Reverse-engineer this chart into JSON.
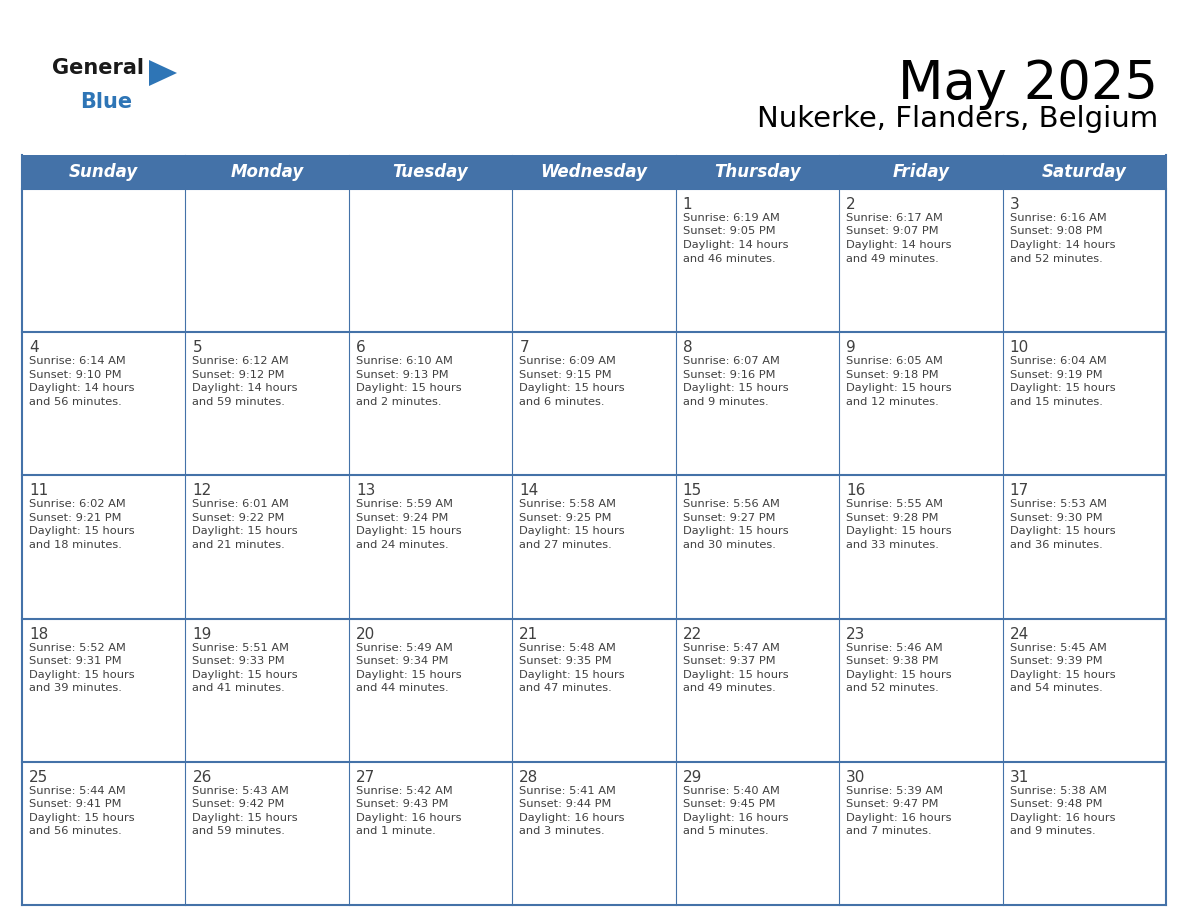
{
  "title": "May 2025",
  "subtitle": "Nukerke, Flanders, Belgium",
  "header_bg": "#4472A8",
  "header_text_color": "#FFFFFF",
  "cell_bg": "#FFFFFF",
  "border_color": "#4472A8",
  "row_border_color": "#4472A8",
  "text_color": "#404040",
  "day_number_color": "#404040",
  "days_of_week": [
    "Sunday",
    "Monday",
    "Tuesday",
    "Wednesday",
    "Thursday",
    "Friday",
    "Saturday"
  ],
  "calendar": [
    [
      {
        "day": null,
        "text": ""
      },
      {
        "day": null,
        "text": ""
      },
      {
        "day": null,
        "text": ""
      },
      {
        "day": null,
        "text": ""
      },
      {
        "day": 1,
        "sunrise": "6:19 AM",
        "sunset": "9:05 PM",
        "daylight": "14 hours",
        "daylight2": "and 46 minutes."
      },
      {
        "day": 2,
        "sunrise": "6:17 AM",
        "sunset": "9:07 PM",
        "daylight": "14 hours",
        "daylight2": "and 49 minutes."
      },
      {
        "day": 3,
        "sunrise": "6:16 AM",
        "sunset": "9:08 PM",
        "daylight": "14 hours",
        "daylight2": "and 52 minutes."
      }
    ],
    [
      {
        "day": 4,
        "sunrise": "6:14 AM",
        "sunset": "9:10 PM",
        "daylight": "14 hours",
        "daylight2": "and 56 minutes."
      },
      {
        "day": 5,
        "sunrise": "6:12 AM",
        "sunset": "9:12 PM",
        "daylight": "14 hours",
        "daylight2": "and 59 minutes."
      },
      {
        "day": 6,
        "sunrise": "6:10 AM",
        "sunset": "9:13 PM",
        "daylight": "15 hours",
        "daylight2": "and 2 minutes."
      },
      {
        "day": 7,
        "sunrise": "6:09 AM",
        "sunset": "9:15 PM",
        "daylight": "15 hours",
        "daylight2": "and 6 minutes."
      },
      {
        "day": 8,
        "sunrise": "6:07 AM",
        "sunset": "9:16 PM",
        "daylight": "15 hours",
        "daylight2": "and 9 minutes."
      },
      {
        "day": 9,
        "sunrise": "6:05 AM",
        "sunset": "9:18 PM",
        "daylight": "15 hours",
        "daylight2": "and 12 minutes."
      },
      {
        "day": 10,
        "sunrise": "6:04 AM",
        "sunset": "9:19 PM",
        "daylight": "15 hours",
        "daylight2": "and 15 minutes."
      }
    ],
    [
      {
        "day": 11,
        "sunrise": "6:02 AM",
        "sunset": "9:21 PM",
        "daylight": "15 hours",
        "daylight2": "and 18 minutes."
      },
      {
        "day": 12,
        "sunrise": "6:01 AM",
        "sunset": "9:22 PM",
        "daylight": "15 hours",
        "daylight2": "and 21 minutes."
      },
      {
        "day": 13,
        "sunrise": "5:59 AM",
        "sunset": "9:24 PM",
        "daylight": "15 hours",
        "daylight2": "and 24 minutes."
      },
      {
        "day": 14,
        "sunrise": "5:58 AM",
        "sunset": "9:25 PM",
        "daylight": "15 hours",
        "daylight2": "and 27 minutes."
      },
      {
        "day": 15,
        "sunrise": "5:56 AM",
        "sunset": "9:27 PM",
        "daylight": "15 hours",
        "daylight2": "and 30 minutes."
      },
      {
        "day": 16,
        "sunrise": "5:55 AM",
        "sunset": "9:28 PM",
        "daylight": "15 hours",
        "daylight2": "and 33 minutes."
      },
      {
        "day": 17,
        "sunrise": "5:53 AM",
        "sunset": "9:30 PM",
        "daylight": "15 hours",
        "daylight2": "and 36 minutes."
      }
    ],
    [
      {
        "day": 18,
        "sunrise": "5:52 AM",
        "sunset": "9:31 PM",
        "daylight": "15 hours",
        "daylight2": "and 39 minutes."
      },
      {
        "day": 19,
        "sunrise": "5:51 AM",
        "sunset": "9:33 PM",
        "daylight": "15 hours",
        "daylight2": "and 41 minutes."
      },
      {
        "day": 20,
        "sunrise": "5:49 AM",
        "sunset": "9:34 PM",
        "daylight": "15 hours",
        "daylight2": "and 44 minutes."
      },
      {
        "day": 21,
        "sunrise": "5:48 AM",
        "sunset": "9:35 PM",
        "daylight": "15 hours",
        "daylight2": "and 47 minutes."
      },
      {
        "day": 22,
        "sunrise": "5:47 AM",
        "sunset": "9:37 PM",
        "daylight": "15 hours",
        "daylight2": "and 49 minutes."
      },
      {
        "day": 23,
        "sunrise": "5:46 AM",
        "sunset": "9:38 PM",
        "daylight": "15 hours",
        "daylight2": "and 52 minutes."
      },
      {
        "day": 24,
        "sunrise": "5:45 AM",
        "sunset": "9:39 PM",
        "daylight": "15 hours",
        "daylight2": "and 54 minutes."
      }
    ],
    [
      {
        "day": 25,
        "sunrise": "5:44 AM",
        "sunset": "9:41 PM",
        "daylight": "15 hours",
        "daylight2": "and 56 minutes."
      },
      {
        "day": 26,
        "sunrise": "5:43 AM",
        "sunset": "9:42 PM",
        "daylight": "15 hours",
        "daylight2": "and 59 minutes."
      },
      {
        "day": 27,
        "sunrise": "5:42 AM",
        "sunset": "9:43 PM",
        "daylight": "16 hours",
        "daylight2": "and 1 minute."
      },
      {
        "day": 28,
        "sunrise": "5:41 AM",
        "sunset": "9:44 PM",
        "daylight": "16 hours",
        "daylight2": "and 3 minutes."
      },
      {
        "day": 29,
        "sunrise": "5:40 AM",
        "sunset": "9:45 PM",
        "daylight": "16 hours",
        "daylight2": "and 5 minutes."
      },
      {
        "day": 30,
        "sunrise": "5:39 AM",
        "sunset": "9:47 PM",
        "daylight": "16 hours",
        "daylight2": "and 7 minutes."
      },
      {
        "day": 31,
        "sunrise": "5:38 AM",
        "sunset": "9:48 PM",
        "daylight": "16 hours",
        "daylight2": "and 9 minutes."
      }
    ]
  ],
  "logo_general_color": "#1a1a1a",
  "logo_blue_color": "#2E75B6",
  "title_fontsize": 38,
  "subtitle_fontsize": 21,
  "header_fontsize": 12,
  "day_num_fontsize": 11,
  "cell_text_fontsize": 8.2
}
